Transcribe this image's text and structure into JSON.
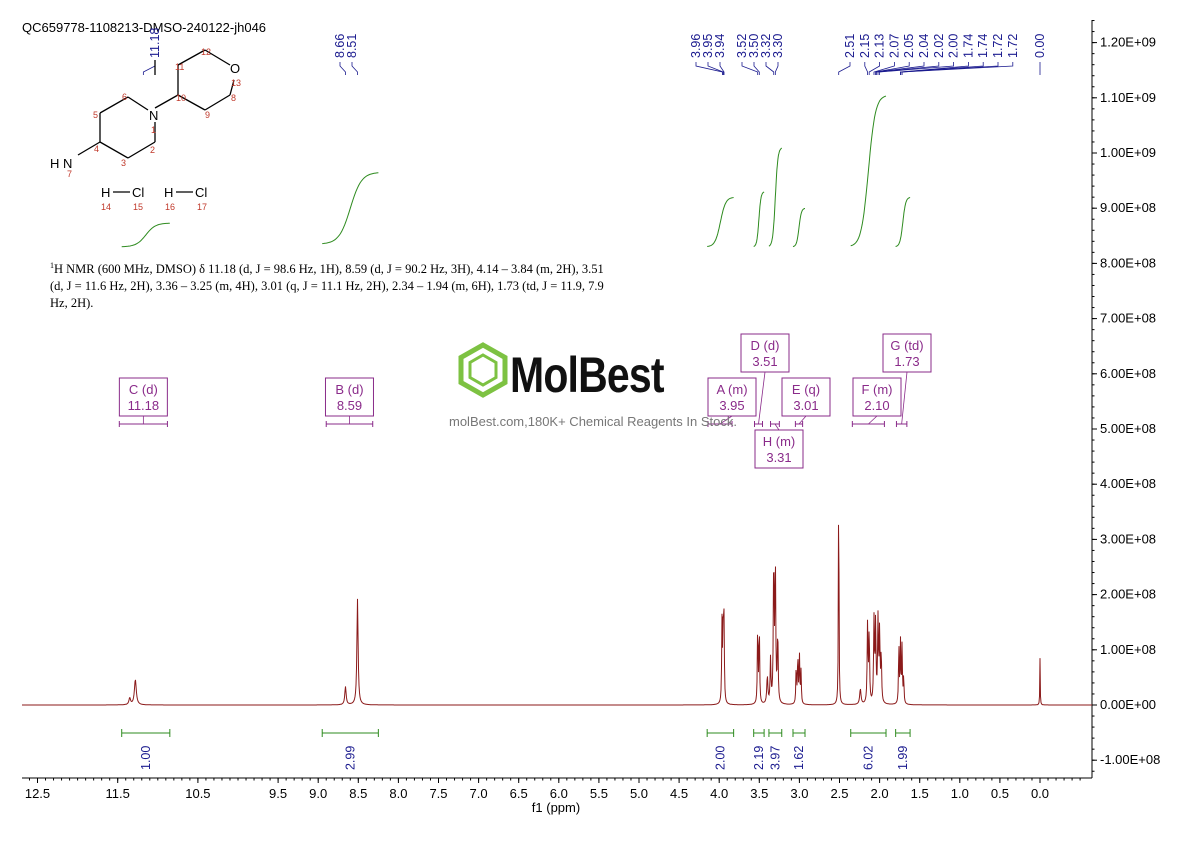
{
  "title": "QC659778-1108213-DMSO-240122-jh046",
  "nmr_text": {
    "nucleus_sup": "1",
    "body": "H NMR (600 MHz, DMSO) δ 11.18 (d, J = 98.6 Hz, 1H), 8.59 (d, J = 90.2 Hz, 3H), 4.14 – 3.84 (m, 2H), 3.51 (d, J = 11.6 Hz, 2H), 3.36 – 3.25 (m, 4H), 3.01 (q, J = 11.1 Hz, 2H), 2.34 – 1.94 (m, 6H), 1.73 (td, J = 11.9, 7.9 Hz, 2H)."
  },
  "watermark": {
    "name": "MolBest",
    "tagline": "molBest.com,180K+ Chemical Reagents In Stock.",
    "accent_color": "#7dc242"
  },
  "structure": {
    "atoms": [
      "N",
      "1",
      "2",
      "3",
      "4",
      "5",
      "6",
      "7",
      "8",
      "9",
      "10",
      "11",
      "12",
      "O",
      "13",
      "H",
      "N",
      "H",
      "Cl",
      "14",
      "15",
      "H",
      "Cl",
      "16",
      "17"
    ]
  },
  "colors": {
    "spectrum": "#8b1a1a",
    "integral": "#2e8b1f",
    "peak_label": "#1b1b8f",
    "multiplet": "#8a2b8a",
    "axis": "#000000"
  },
  "chart_data": {
    "type": "line",
    "xlabel": "f1 (ppm)",
    "xlim": [
      12.7,
      -0.6
    ],
    "ylim": [
      -130000000.0,
      1250000000.0
    ],
    "x_ticks": [
      "12.5",
      "11.5",
      "10.5",
      "9.5",
      "9.0",
      "8.5",
      "8.0",
      "7.5",
      "7.0",
      "6.5",
      "6.0",
      "5.5",
      "5.0",
      "4.5",
      "4.0",
      "3.5",
      "3.0",
      "2.5",
      "2.0",
      "1.5",
      "1.0",
      "0.5",
      "0.0"
    ],
    "x_tick_values": [
      12.5,
      11.5,
      10.5,
      9.5,
      9.0,
      8.5,
      8.0,
      7.5,
      7.0,
      6.5,
      6.0,
      5.5,
      5.0,
      4.5,
      4.0,
      3.5,
      3.0,
      2.5,
      2.0,
      1.5,
      1.0,
      0.5,
      0.0
    ],
    "y_ticks": [
      "1.20E+09",
      "1.10E+09",
      "1.00E+09",
      "9.00E+08",
      "8.00E+08",
      "7.00E+08",
      "6.00E+08",
      "5.00E+08",
      "4.00E+08",
      "3.00E+08",
      "2.00E+08",
      "1.00E+08",
      "0.00E+00",
      "-1.00E+08"
    ],
    "y_tick_values": [
      1200000000.0,
      1100000000.0,
      1000000000.0,
      900000000.0,
      800000000.0,
      700000000.0,
      600000000.0,
      500000000.0,
      400000000.0,
      300000000.0,
      200000000.0,
      100000000.0,
      0,
      -100000000.0
    ],
    "peaks": [
      {
        "ppm": 11.35,
        "height": 12000000.0,
        "width": 0.012
      },
      {
        "ppm": 11.28,
        "height": 46000000.0,
        "width": 0.014
      },
      {
        "ppm": 8.66,
        "height": 33000000.0,
        "width": 0.01
      },
      {
        "ppm": 8.51,
        "height": 192000000.0,
        "width": 0.009
      },
      {
        "ppm": 3.965,
        "height": 145000000.0,
        "width": 0.005
      },
      {
        "ppm": 3.95,
        "height": 152000000.0,
        "width": 0.005
      },
      {
        "ppm": 3.94,
        "height": 138000000.0,
        "width": 0.005
      },
      {
        "ppm": 3.52,
        "height": 148000000.0,
        "width": 0.005
      },
      {
        "ppm": 3.5,
        "height": 145000000.0,
        "width": 0.005
      },
      {
        "ppm": 3.4,
        "height": 50000000.0,
        "width": 0.008
      },
      {
        "ppm": 3.36,
        "height": 80000000.0,
        "width": 0.006
      },
      {
        "ppm": 3.32,
        "height": 270000000.0,
        "width": 0.006
      },
      {
        "ppm": 3.3,
        "height": 250000000.0,
        "width": 0.006
      },
      {
        "ppm": 3.27,
        "height": 130000000.0,
        "width": 0.006
      },
      {
        "ppm": 3.04,
        "height": 70000000.0,
        "width": 0.005
      },
      {
        "ppm": 3.02,
        "height": 90000000.0,
        "width": 0.005
      },
      {
        "ppm": 3.0,
        "height": 90000000.0,
        "width": 0.005
      },
      {
        "ppm": 2.98,
        "height": 60000000.0,
        "width": 0.005
      },
      {
        "ppm": 2.51,
        "height": 450000000.0,
        "width": 0.004
      },
      {
        "ppm": 2.24,
        "height": 28000000.0,
        "width": 0.01
      },
      {
        "ppm": 2.15,
        "height": 145000000.0,
        "width": 0.006
      },
      {
        "ppm": 2.13,
        "height": 130000000.0,
        "width": 0.006
      },
      {
        "ppm": 2.07,
        "height": 150000000.0,
        "width": 0.006
      },
      {
        "ppm": 2.05,
        "height": 145000000.0,
        "width": 0.006
      },
      {
        "ppm": 2.02,
        "height": 150000000.0,
        "width": 0.006
      },
      {
        "ppm": 2.0,
        "height": 130000000.0,
        "width": 0.006
      },
      {
        "ppm": 1.98,
        "height": 90000000.0,
        "width": 0.006
      },
      {
        "ppm": 1.76,
        "height": 110000000.0,
        "width": 0.005
      },
      {
        "ppm": 1.74,
        "height": 112000000.0,
        "width": 0.005
      },
      {
        "ppm": 1.72,
        "height": 105000000.0,
        "width": 0.005
      },
      {
        "ppm": 1.7,
        "height": 50000000.0,
        "width": 0.005
      },
      {
        "ppm": 0.0,
        "height": 85000000.0,
        "width": 0.003
      }
    ],
    "peak_labels": [
      {
        "label": "11.18",
        "ppm": 11.18
      },
      {
        "label": "8.66",
        "ppm": 8.66
      },
      {
        "label": "8.51",
        "ppm": 8.51
      },
      {
        "label": "3.96",
        "ppm": 3.96
      },
      {
        "label": "3.95",
        "ppm": 3.95
      },
      {
        "label": "3.94",
        "ppm": 3.94
      },
      {
        "label": "3.52",
        "ppm": 3.52
      },
      {
        "label": "3.50",
        "ppm": 3.5
      },
      {
        "label": "3.32",
        "ppm": 3.32
      },
      {
        "label": "3.30",
        "ppm": 3.3
      },
      {
        "label": "2.51",
        "ppm": 2.51
      },
      {
        "label": "2.15",
        "ppm": 2.15
      },
      {
        "label": "2.13",
        "ppm": 2.13
      },
      {
        "label": "2.07",
        "ppm": 2.07
      },
      {
        "label": "2.05",
        "ppm": 2.05
      },
      {
        "label": "2.04",
        "ppm": 2.04
      },
      {
        "label": "2.02",
        "ppm": 2.02
      },
      {
        "label": "2.00",
        "ppm": 2.0
      },
      {
        "label": "1.74",
        "ppm": 1.74
      },
      {
        "label": "1.74",
        "ppm": 1.74
      },
      {
        "label": "1.72",
        "ppm": 1.72
      },
      {
        "label": "1.72",
        "ppm": 1.72
      },
      {
        "label": "0.00",
        "ppm": 0.0
      }
    ],
    "integrals": [
      {
        "label": "1.00",
        "from": 11.45,
        "to": 10.85
      },
      {
        "label": "2.99",
        "from": 8.95,
        "to": 8.25
      },
      {
        "label": "2.00",
        "from": 4.15,
        "to": 3.82
      },
      {
        "label": "2.19",
        "from": 3.57,
        "to": 3.44
      },
      {
        "label": "3.97",
        "from": 3.38,
        "to": 3.22
      },
      {
        "label": "1.62",
        "from": 3.08,
        "to": 2.93
      },
      {
        "label": "6.02",
        "from": 2.36,
        "to": 1.92
      },
      {
        "label": "1.99",
        "from": 1.8,
        "to": 1.62
      }
    ],
    "integral_curves": [
      {
        "from": 11.45,
        "to": 10.85,
        "base": 830000000.0,
        "rise": 43000000.0
      },
      {
        "from": 8.95,
        "to": 8.25,
        "base": 835000000.0,
        "rise": 130000000.0
      },
      {
        "from": 4.15,
        "to": 3.82,
        "base": 830000000.0,
        "rise": 90000000.0
      },
      {
        "from": 3.57,
        "to": 3.44,
        "base": 830000000.0,
        "rise": 100000000.0
      },
      {
        "from": 3.38,
        "to": 3.22,
        "base": 830000000.0,
        "rise": 180000000.0
      },
      {
        "from": 3.08,
        "to": 2.93,
        "base": 830000000.0,
        "rise": 70000000.0
      },
      {
        "from": 2.36,
        "to": 1.92,
        "base": 830000000.0,
        "rise": 275000000.0
      },
      {
        "from": 1.8,
        "to": 1.62,
        "base": 830000000.0,
        "rise": 90000000.0
      }
    ],
    "multiplets": [
      {
        "id": "C (d)",
        "value": "11.18",
        "from": 11.48,
        "to": 10.88,
        "row": 0
      },
      {
        "id": "B (d)",
        "value": "8.59",
        "from": 8.9,
        "to": 8.32,
        "row": 0
      },
      {
        "id": "A (m)",
        "value": "3.95",
        "from": 4.14,
        "to": 3.84,
        "row": 0
      },
      {
        "id": "D (d)",
        "value": "3.51",
        "from": 3.56,
        "to": 3.46,
        "row": -1
      },
      {
        "id": "H (m)",
        "value": "3.31",
        "from": 3.36,
        "to": 3.25,
        "row": 1
      },
      {
        "id": "E (q)",
        "value": "3.01",
        "from": 3.05,
        "to": 2.96,
        "row": 0
      },
      {
        "id": "F (m)",
        "value": "2.10",
        "from": 2.34,
        "to": 1.94,
        "row": 0
      },
      {
        "id": "G (td)",
        "value": "1.73",
        "from": 1.79,
        "to": 1.66,
        "row": -1
      }
    ]
  }
}
